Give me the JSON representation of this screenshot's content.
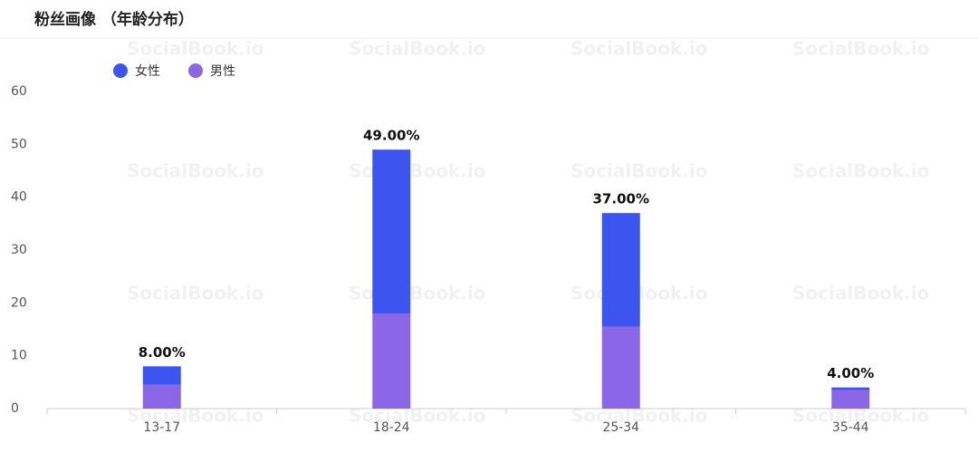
{
  "chart_data": {
    "type": "stacked_bar",
    "title": "粉丝画像 （年龄分布）",
    "watermark": "SocialBook.io",
    "categories": [
      "13-17",
      "18-24",
      "25-34",
      "35-44"
    ],
    "series": [
      {
        "name": "男性",
        "color": "#8b67e8",
        "values": [
          4.5,
          18,
          15.5,
          3.5
        ]
      },
      {
        "name": "女性",
        "color": "#3d55f0",
        "values": [
          3.5,
          31,
          21.5,
          0.5
        ]
      }
    ],
    "legend_order": [
      1,
      0
    ],
    "totals": {
      "values": [
        8,
        49,
        37,
        4
      ],
      "value_labels": [
        "8.00%",
        "49.00%",
        "37.00%",
        "4.00%"
      ]
    },
    "ylim": [
      0,
      60
    ],
    "yticks": [
      0,
      10,
      20,
      30,
      40,
      50,
      60
    ],
    "grid": false
  }
}
